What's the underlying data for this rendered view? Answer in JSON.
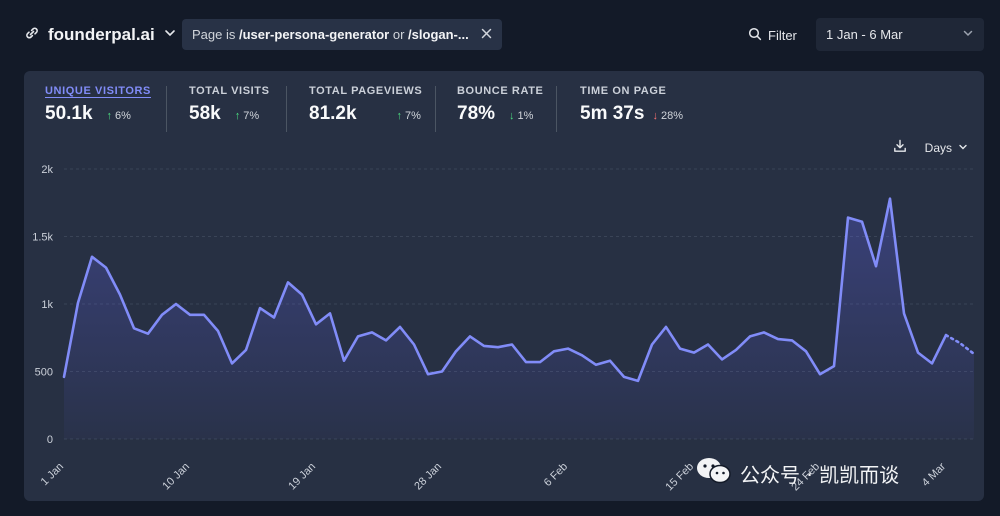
{
  "header": {
    "site_name": "founderpal.ai",
    "filter_prefix": "Page is ",
    "filter_value1": "/user-persona-generator",
    "filter_or": " or ",
    "filter_value2": "/slogan-...",
    "filter_button": "Filter",
    "date_range": "1 Jan - 6 Mar"
  },
  "metrics": [
    {
      "label": "UNIQUE VISITORS",
      "value": "50.1k",
      "change": "6%",
      "direction": "up"
    },
    {
      "label": "TOTAL VISITS",
      "value": "58k",
      "change": "7%",
      "direction": "up"
    },
    {
      "label": "TOTAL PAGEVIEWS",
      "value": "81.2k",
      "change": "7%",
      "direction": "up"
    },
    {
      "label": "BOUNCE RATE",
      "value": "78%",
      "change": "1%",
      "direction": "down"
    },
    {
      "label": "TIME ON PAGE",
      "value": "5m 37s",
      "change": "28%",
      "direction": "down"
    }
  ],
  "tools": {
    "interval": "Days"
  },
  "watermark": {
    "text": "公众号 · 凯凯而谈"
  },
  "colors": {
    "accent": "#818cf8",
    "up": "#4ade80",
    "down": "#f87171"
  },
  "chart_data": {
    "type": "area",
    "title": "Unique visitors",
    "ylim": [
      0,
      2000
    ],
    "yticks": [
      0,
      500,
      1000,
      1500,
      2000
    ],
    "ytick_labels": [
      "0",
      "500",
      "1k",
      "1.5k",
      "2k"
    ],
    "xtick_labels": [
      "1 Jan",
      "10 Jan",
      "19 Jan",
      "28 Jan",
      "6 Feb",
      "15 Feb",
      "24 Feb",
      "4 Mar"
    ],
    "xtick_indices": [
      0,
      9,
      18,
      27,
      36,
      45,
      54,
      63
    ],
    "values": [
      460,
      1010,
      1350,
      1270,
      1070,
      820,
      780,
      920,
      1000,
      920,
      920,
      800,
      560,
      660,
      970,
      900,
      1160,
      1070,
      850,
      930,
      580,
      760,
      790,
      730,
      830,
      700,
      480,
      500,
      650,
      760,
      690,
      680,
      700,
      570,
      570,
      650,
      670,
      620,
      550,
      580,
      460,
      430,
      700,
      830,
      670,
      640,
      700,
      590,
      660,
      760,
      790,
      740,
      730,
      650,
      480,
      540,
      1640,
      1610,
      1280,
      1780,
      930,
      640,
      560,
      770,
      710,
      630
    ],
    "incomplete_from_index": 64
  }
}
